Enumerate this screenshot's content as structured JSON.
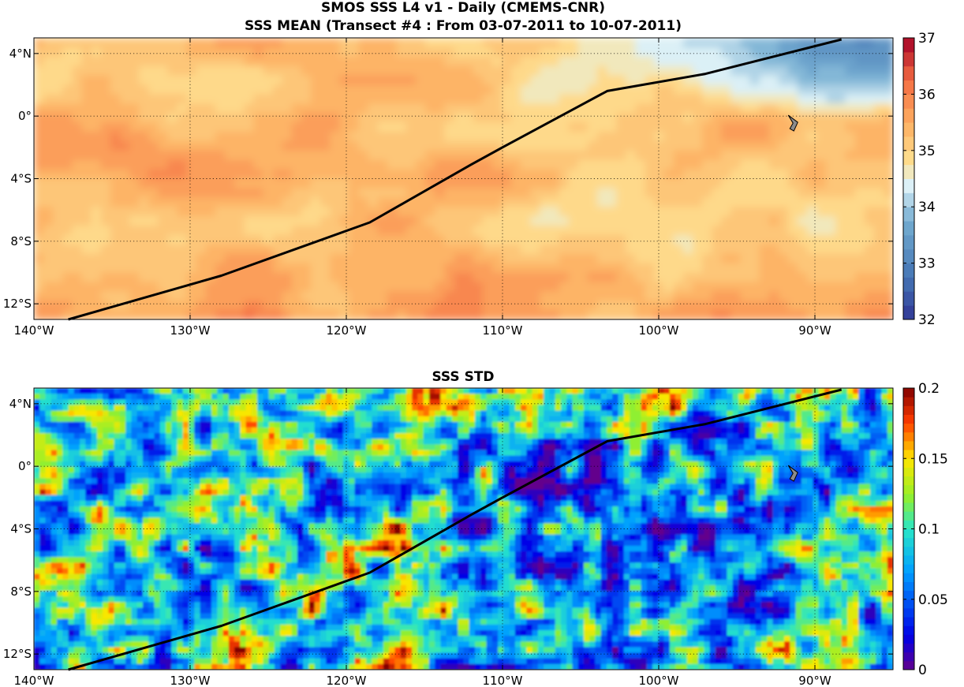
{
  "chart_data": [
    {
      "type": "heatmap",
      "title_lines": [
        "SMOS SSS L4 v1 - Daily (CMEMS-CNR)",
        "SSS MEAN (Transect #4 : From 03-07-2011 to 10-07-2011)"
      ],
      "xlim": [
        -140,
        -85
      ],
      "ylim": [
        -13,
        5
      ],
      "x_ticks": [
        -140,
        -130,
        -120,
        -110,
        -100,
        -90
      ],
      "x_tick_labels": [
        "140°W",
        "130°W",
        "120°W",
        "110°W",
        "100°W",
        "90°W"
      ],
      "y_ticks": [
        4,
        0,
        -4,
        -8,
        -12
      ],
      "y_tick_labels": [
        "4°N",
        "0°",
        "4°S",
        "8°S",
        "12°S"
      ],
      "grid": true,
      "grid_style": "dotted",
      "colormap": "blue-to-red diverging",
      "colorbar_range": [
        32,
        37
      ],
      "colorbar_ticks": [
        37,
        36,
        35,
        34,
        33,
        32
      ],
      "colorbar_tick_labels": [
        "37",
        "36",
        "35",
        "34",
        "33",
        "32"
      ],
      "colorbar_position": "right",
      "transect": {
        "color": "#000000",
        "lon": [
          -137.8,
          -128,
          -118.5,
          -112,
          -110,
          -103.3,
          -97,
          -88.3
        ],
        "lat": [
          -13,
          -10.2,
          -6.8,
          -3.1,
          -2,
          1.6,
          2.7,
          4.9
        ]
      },
      "island_marker": {
        "lon": -91.3,
        "lat": -0.6,
        "color": "#8c8c8c"
      }
    },
    {
      "type": "heatmap",
      "title_lines": [
        "SSS STD"
      ],
      "xlim": [
        -140,
        -85
      ],
      "ylim": [
        -13,
        5
      ],
      "x_ticks": [
        -140,
        -130,
        -120,
        -110,
        -100,
        -90
      ],
      "x_tick_labels": [
        "140°W",
        "130°W",
        "120°W",
        "110°W",
        "100°W",
        "90°W"
      ],
      "y_ticks": [
        4,
        0,
        -4,
        -8,
        -12
      ],
      "y_tick_labels": [
        "4°N",
        "0°",
        "4°S",
        "8°S",
        "12°S"
      ],
      "grid": true,
      "grid_style": "dotted",
      "colormap": "jet",
      "colorbar_range": [
        0,
        0.2
      ],
      "colorbar_ticks": [
        0.2,
        0.15,
        0.1,
        0.05,
        0
      ],
      "colorbar_tick_labels": [
        "0.2",
        "0.15",
        "0.1",
        "0.05",
        "0"
      ],
      "colorbar_position": "right",
      "transect": {
        "color": "#000000",
        "lon": [
          -137.8,
          -128,
          -118.5,
          -112,
          -110,
          -103.3,
          -97,
          -88.3
        ],
        "lat": [
          -13,
          -10.2,
          -6.8,
          -3.1,
          -2,
          1.6,
          2.7,
          4.9
        ]
      },
      "island_marker": {
        "lon": -91.3,
        "lat": -0.6,
        "color": "#8c8c8c"
      }
    }
  ]
}
